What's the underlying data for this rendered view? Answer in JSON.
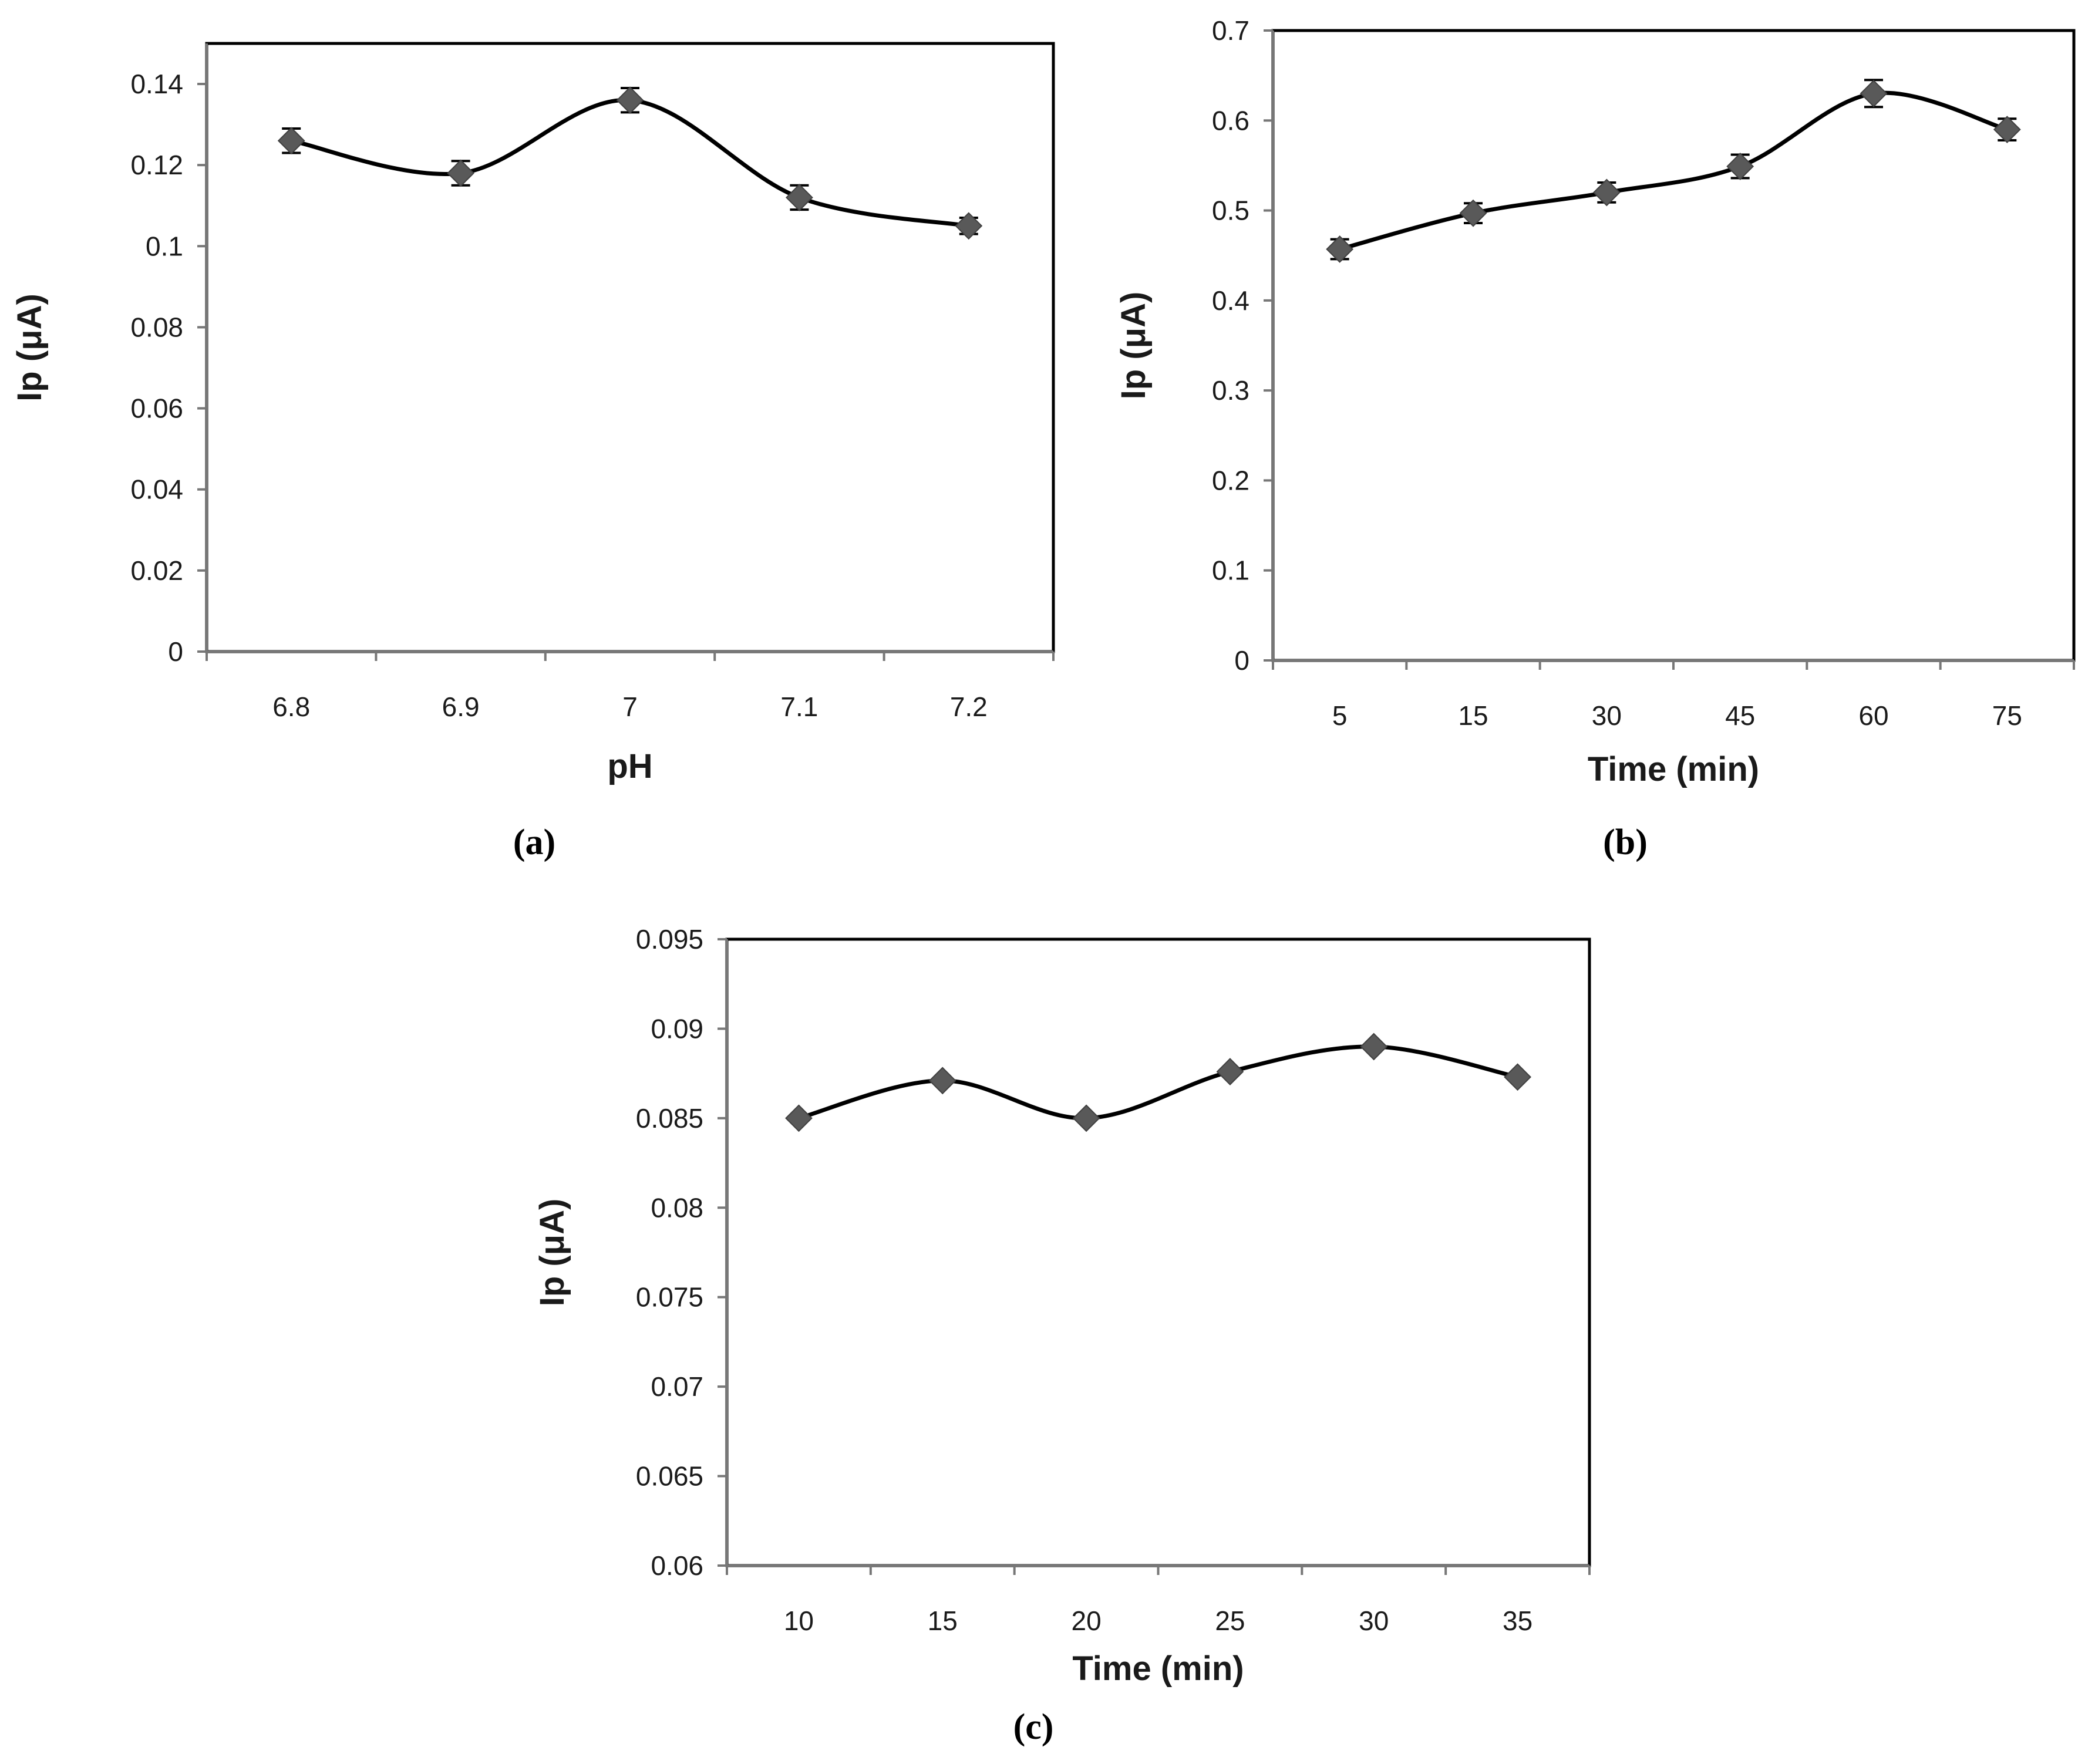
{
  "chart_data": [
    {
      "id": "a",
      "type": "line",
      "panel_label": "(a)",
      "xlabel": "pH",
      "ylabel": "Ip  (μA)",
      "categories": [
        "6.8",
        "6.9",
        "7",
        "7.1",
        "7.2"
      ],
      "values": [
        0.126,
        0.118,
        0.136,
        0.112,
        0.105
      ],
      "errors": [
        0.003,
        0.003,
        0.003,
        0.003,
        0.002
      ],
      "ylim": [
        0,
        0.15
      ],
      "yticks": [
        "0",
        "0.02",
        "0.04",
        "0.06",
        "0.08",
        "0.1",
        "0.12",
        "0.14"
      ],
      "ytick_values": [
        0,
        0.02,
        0.04,
        0.06,
        0.08,
        0.1,
        0.12,
        0.14
      ],
      "grid": false,
      "line_color": "#000000",
      "marker_color": "#595959"
    },
    {
      "id": "b",
      "type": "line",
      "panel_label": "(b)",
      "xlabel": "Time (min)",
      "ylabel": "Ip (μA)",
      "categories": [
        "5",
        "15",
        "30",
        "45",
        "60",
        "75"
      ],
      "values": [
        0.457,
        0.497,
        0.52,
        0.549,
        0.63,
        0.59
      ],
      "errors": [
        0.011,
        0.011,
        0.011,
        0.013,
        0.015,
        0.012
      ],
      "ylim": [
        0,
        0.7
      ],
      "yticks": [
        "0",
        "0.1",
        "0.2",
        "0.3",
        "0.4",
        "0.5",
        "0.6",
        "0.7"
      ],
      "ytick_values": [
        0,
        0.1,
        0.2,
        0.3,
        0.4,
        0.5,
        0.6,
        0.7
      ],
      "grid": false,
      "line_color": "#000000",
      "marker_color": "#595959"
    },
    {
      "id": "c",
      "type": "line",
      "panel_label": "(c)",
      "xlabel": "Time (min)",
      "ylabel": "Ip (μA)",
      "categories": [
        "10",
        "15",
        "20",
        "25",
        "30",
        "35"
      ],
      "values": [
        0.085,
        0.0871,
        0.085,
        0.0876,
        0.089,
        0.0873
      ],
      "errors": [
        0,
        0,
        0,
        0,
        0,
        0
      ],
      "ylim": [
        0.06,
        0.095
      ],
      "yticks": [
        "0.06",
        "0.065",
        "0.07",
        "0.075",
        "0.08",
        "0.085",
        "0.09",
        "0.095"
      ],
      "ytick_values": [
        0.06,
        0.065,
        0.07,
        0.075,
        0.08,
        0.085,
        0.09,
        0.095
      ],
      "grid": false,
      "line_color": "#000000",
      "marker_color": "#595959"
    }
  ]
}
